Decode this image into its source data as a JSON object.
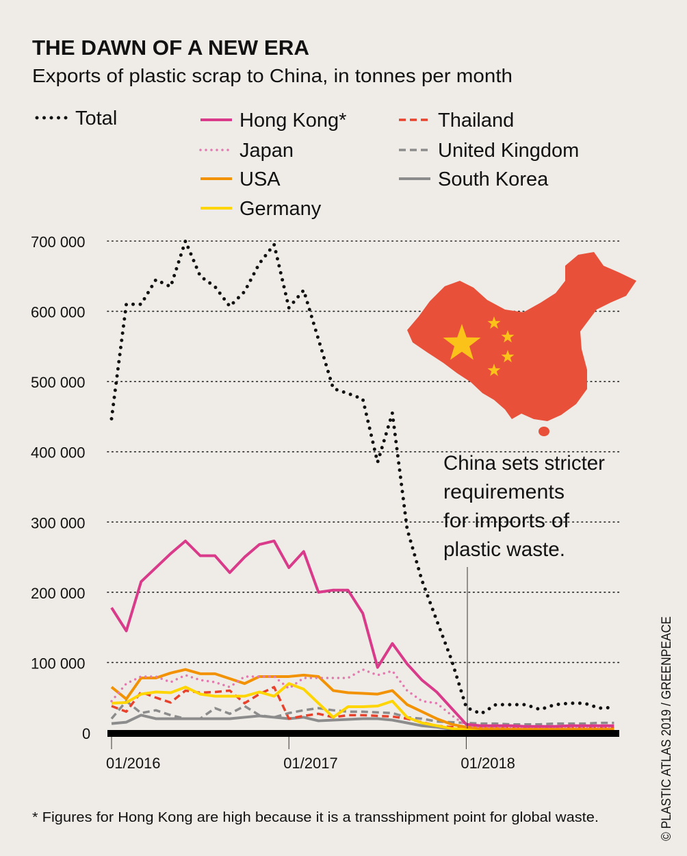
{
  "chart_data": {
    "type": "line",
    "title": "THE DAWN OF A NEW ERA",
    "subtitle": "Exports of plastic scrap to China, in tonnes per month",
    "ylim": [
      0,
      700000
    ],
    "yticks": [
      0,
      100000,
      200000,
      300000,
      400000,
      500000,
      600000,
      700000
    ],
    "ytick_labels": [
      "0",
      "100 000",
      "200 000",
      "300 000",
      "400 000",
      "500 000",
      "600 000",
      "700 000"
    ],
    "xtick_labels": [
      "01/2016",
      "01/2017",
      "01/2018"
    ],
    "xtick_months": [
      "2016-01",
      "2017-01",
      "2018-01"
    ],
    "x": [
      "2016-01",
      "2016-02",
      "2016-03",
      "2016-04",
      "2016-05",
      "2016-06",
      "2016-07",
      "2016-08",
      "2016-09",
      "2016-10",
      "2016-11",
      "2016-12",
      "2017-01",
      "2017-02",
      "2017-03",
      "2017-04",
      "2017-05",
      "2017-06",
      "2017-07",
      "2017-08",
      "2017-09",
      "2017-10",
      "2017-11",
      "2017-12",
      "2018-01",
      "2018-02",
      "2018-03",
      "2018-04",
      "2018-05",
      "2018-06",
      "2018-07",
      "2018-08",
      "2018-09",
      "2018-10",
      "2018-11"
    ],
    "grid": true,
    "legend_position": "top",
    "series": [
      {
        "name": "Total",
        "color": "#111111",
        "style": "dotted-large",
        "values": [
          447000,
          610000,
          610000,
          645000,
          635000,
          700000,
          650000,
          635000,
          607000,
          628000,
          668000,
          695000,
          605000,
          630000,
          560000,
          490000,
          483000,
          475000,
          385000,
          455000,
          290000,
          217000,
          160000,
          104000,
          36000,
          27000,
          40000,
          40000,
          40000,
          33000,
          40000,
          42000,
          42000,
          35000,
          36000
        ]
      },
      {
        "name": "Hong Kong*",
        "color": "#d93a8a",
        "style": "solid",
        "values": [
          178000,
          145000,
          215000,
          235000,
          255000,
          273000,
          252000,
          252000,
          228000,
          250000,
          268000,
          273000,
          235000,
          258000,
          200000,
          203000,
          203000,
          170000,
          93000,
          127000,
          98000,
          75000,
          58000,
          35000,
          12000,
          10000,
          10000,
          10000,
          9000,
          9000,
          9000,
          10000,
          10000,
          10000,
          10000
        ]
      },
      {
        "name": "Japan",
        "color": "#e27aaf",
        "style": "dotted",
        "values": [
          45000,
          70000,
          80000,
          80000,
          72000,
          82000,
          75000,
          72000,
          65000,
          80000,
          80000,
          80000,
          63000,
          78000,
          78000,
          78000,
          78000,
          90000,
          82000,
          88000,
          60000,
          45000,
          42000,
          25000,
          10000,
          8000,
          8000,
          8000,
          8000,
          8000,
          8000,
          8000,
          8000,
          8000,
          8000
        ]
      },
      {
        "name": "USA",
        "color": "#f39200",
        "style": "solid",
        "values": [
          65000,
          48000,
          78000,
          78000,
          85000,
          90000,
          84000,
          84000,
          77000,
          70000,
          80000,
          80000,
          80000,
          82000,
          80000,
          60000,
          57000,
          56000,
          55000,
          60000,
          40000,
          30000,
          20000,
          12000,
          8000,
          6000,
          6000,
          5000,
          5000,
          5000,
          5000,
          5000,
          5000,
          5000,
          5000
        ]
      },
      {
        "name": "Germany",
        "color": "#ffd500",
        "style": "solid",
        "values": [
          42000,
          43000,
          55000,
          58000,
          57000,
          65000,
          55000,
          52000,
          52000,
          52000,
          58000,
          52000,
          70000,
          62000,
          42000,
          22000,
          37000,
          37000,
          38000,
          45000,
          22000,
          14000,
          10000,
          6000,
          5000,
          5000,
          5000,
          5000,
          5000,
          5000,
          5000,
          5000,
          5000,
          5000,
          5000
        ]
      },
      {
        "name": "Thailand",
        "color": "#e8412c",
        "style": "dashed",
        "values": [
          38000,
          30000,
          58000,
          50000,
          43000,
          60000,
          57000,
          58000,
          60000,
          42000,
          55000,
          65000,
          20000,
          24000,
          27000,
          22000,
          25000,
          25000,
          24000,
          23000,
          20000,
          15000,
          10000,
          8000,
          8000,
          8000,
          8000,
          7000,
          7000,
          7000,
          7000,
          7000,
          7000,
          7000,
          7000
        ]
      },
      {
        "name": "United Kingdom",
        "color": "#8c8c8c",
        "style": "dashed",
        "values": [
          20000,
          45000,
          28000,
          32000,
          25000,
          20000,
          20000,
          35000,
          27000,
          38000,
          25000,
          22000,
          28000,
          32000,
          35000,
          32000,
          30000,
          30000,
          29000,
          28000,
          22000,
          20000,
          16000,
          15000,
          14000,
          13000,
          13000,
          12000,
          12000,
          12000,
          13000,
          13000,
          13000,
          14000,
          14000
        ]
      },
      {
        "name": "South Korea",
        "color": "#8c8c8c",
        "style": "solid",
        "values": [
          13000,
          15000,
          25000,
          20000,
          20000,
          20000,
          20000,
          20000,
          20000,
          22000,
          24000,
          22000,
          20000,
          22000,
          17000,
          18000,
          19000,
          20000,
          20000,
          18000,
          14000,
          10000,
          8000,
          5000,
          5000,
          5000,
          5000,
          5000,
          3000,
          4000,
          4000,
          4000,
          4000,
          4000,
          4000
        ]
      }
    ],
    "annotation": {
      "text_lines": [
        "China sets stricter",
        "requirements",
        "for imports of",
        "plastic waste."
      ],
      "month": "2018-01"
    },
    "footnote": "* Figures for Hong Kong are high because it is a transshipment point for global waste.",
    "credit": "© PLASTIC ATLAS 2019 / GREENPEACE",
    "map": {
      "country": "China",
      "fill": "#e8503a",
      "star_color": "#fbc31a"
    }
  }
}
